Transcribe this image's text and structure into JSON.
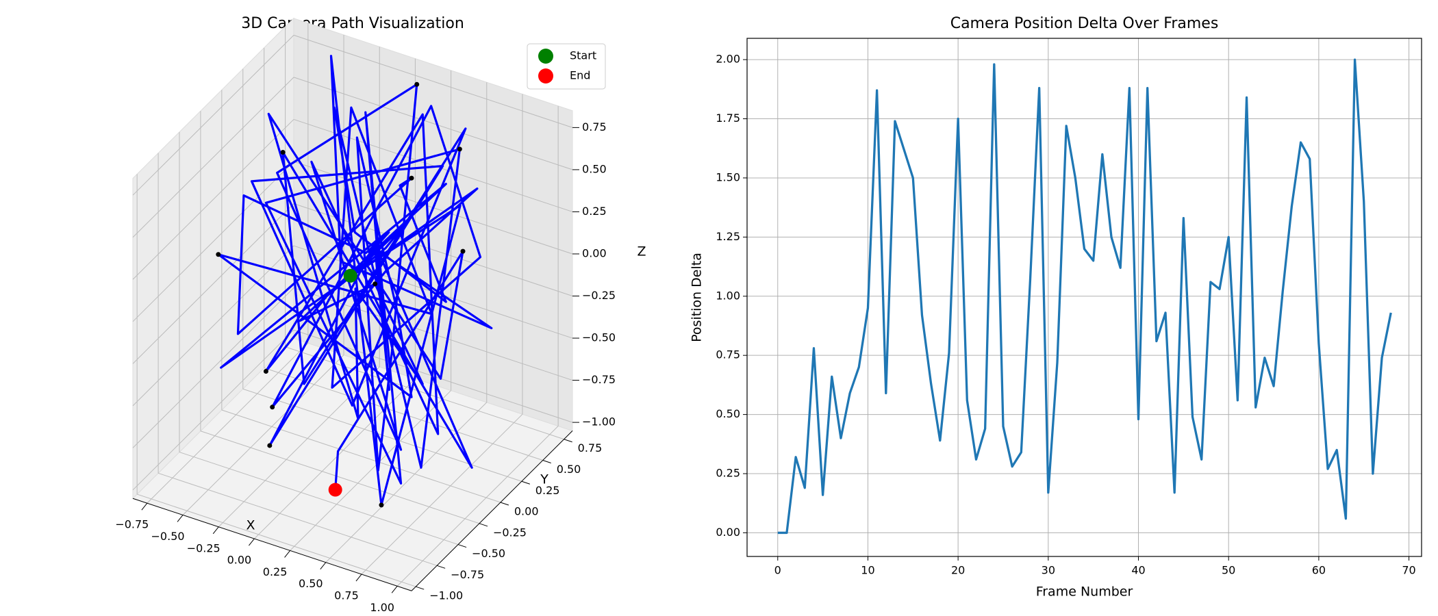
{
  "chart_data": [
    {
      "type": "line3d",
      "title": "3D Camera Path Visualization",
      "xlabel": "X",
      "ylabel": "Y",
      "zlabel": "Z",
      "xlim": [
        -0.85,
        1.1
      ],
      "ylim": [
        -1.05,
        0.85
      ],
      "zlim": [
        -1.05,
        0.85
      ],
      "xticks": [
        {
          "value": -0.75,
          "label": "−0.75"
        },
        {
          "value": -0.5,
          "label": "−0.50"
        },
        {
          "value": -0.25,
          "label": "−0.25"
        },
        {
          "value": 0,
          "label": "0.00"
        },
        0.25,
        {
          "value": 0.5,
          "label": "0.50"
        },
        0.75,
        {
          "value": 1,
          "label": "1.00"
        }
      ],
      "yticks": [
        {
          "value": -1,
          "label": "−1.00"
        },
        {
          "value": -0.75,
          "label": "−0.75"
        },
        {
          "value": -0.5,
          "label": "−0.50"
        },
        {
          "value": -0.25,
          "label": "−0.25"
        },
        {
          "value": 0,
          "label": "0.00"
        },
        0.25,
        {
          "value": 0.5,
          "label": "0.50"
        },
        0.75
      ],
      "zticks": [
        {
          "value": -1,
          "label": "−1.00"
        },
        {
          "value": -0.75,
          "label": "−0.75"
        },
        {
          "value": -0.5,
          "label": "−0.50"
        },
        {
          "value": -0.25,
          "label": "−0.25"
        },
        {
          "value": 0,
          "label": "0.00"
        },
        0.25,
        {
          "value": 0.5,
          "label": "0.50"
        },
        0.75
      ],
      "grid": true,
      "legend": "upper right",
      "series": [
        {
          "mode": "line",
          "color": "#0000ff",
          "x": [
            0.05,
            0.05,
            0.2,
            0.1,
            -0.4,
            -0.5,
            0.3,
            0.1,
            0.6,
            0.2,
            -0.3,
            0.9,
            0.4,
            -0.6,
            0.7,
            -0.2,
            0.5,
            0.1,
            -0.1,
            0.4,
            -0.7,
            0.3,
            0.5,
            0.2,
            -0.6,
            0.9,
            0.6,
            0.8,
            0.1,
            -0.5,
            0.8,
            0.7,
            -0.3,
            0.6,
            0.0,
            0.3,
            -0.6,
            0.2,
            0.9,
            -0.4,
            0.7,
            -0.7,
            0.1,
            0.4,
            0.6,
            -0.2,
            0.5,
            0.3,
            -0.4,
            0.5,
            -0.3,
            0.1,
            0.9,
            0.2,
            -0.2,
            0.3,
            0.7,
            -0.5,
            0.6,
            -0.6,
            0.4,
            0.2,
            0.5,
            0.4,
            -0.7,
            0.8,
            0.6,
            0.2,
            0.3
          ],
          "y": [
            0.0,
            0.0,
            0.2,
            0.1,
            -0.5,
            -0.4,
            0.3,
            0.5,
            0.2,
            -0.2,
            0.4,
            -0.6,
            0.7,
            0.1,
            -0.5,
            0.6,
            -0.3,
            0.2,
            -0.7,
            0.5,
            0.1,
            -0.4,
            0.6,
            -0.8,
            0.3,
            0.0,
            -0.6,
            0.4,
            -0.2,
            0.7,
            -0.9,
            0.2,
            0.6,
            -0.3,
            0.5,
            -0.7,
            0.1,
            0.6,
            -0.4,
            0.3,
            -0.5,
            0.4,
            0.7,
            -0.1,
            -0.6,
            0.5,
            -0.2,
            0.3,
            -0.8,
            0.2,
            0.6,
            -0.3,
            0.1,
            0.7,
            -0.5,
            0.0,
            0.4,
            -0.6,
            0.2,
            0.5,
            -0.3,
            0.6,
            -0.7,
            -0.5,
            0.3,
            -0.2,
            0.4,
            -0.4,
            -0.6
          ],
          "z": [
            0.0,
            0.0,
            0.2,
            0.1,
            0.6,
            -0.3,
            0.5,
            0.3,
            -0.1,
            0.4,
            0.7,
            -0.6,
            0.5,
            0.2,
            -0.8,
            0.6,
            -0.4,
            0.1,
            -0.7,
            0.5,
            0.3,
            -0.5,
            0.7,
            -0.2,
            0.4,
            -0.9,
            0.6,
            -0.3,
            0.2,
            0.8,
            -0.7,
            0.5,
            -0.4,
            0.6,
            -0.1,
            0.3,
            -0.8,
            0.7,
            -0.5,
            0.4,
            -0.6,
            0.2,
            0.8,
            -0.3,
            -0.7,
            0.5,
            0.0,
            -0.8,
            0.4,
            -0.2,
            0.6,
            -0.5,
            0.3,
            0.7,
            -0.6,
            0.1,
            0.5,
            -0.4,
            0.6,
            -0.7,
            0.2,
            -0.9,
            0.4,
            -0.5,
            0.6,
            -0.3,
            0.1,
            -0.8,
            -0.9
          ]
        },
        {
          "mode": "points",
          "color": "#000000",
          "x": [
            0.3,
            0.4,
            -0.1,
            -0.6,
            0.8,
            -0.6,
            0.1,
            -0.4,
            -0.2,
            0.4,
            0.6
          ],
          "y": [
            0.3,
            0.7,
            -0.7,
            0.3,
            -0.9,
            0.1,
            0.7,
            -0.8,
            -0.5,
            -0.3,
            0.4
          ],
          "z": [
            0.5,
            0.5,
            -0.7,
            0.4,
            -0.7,
            -0.8,
            0.8,
            0.4,
            -0.6,
            0.2,
            0.1
          ]
        },
        {
          "mode": "points",
          "name": "Start",
          "color": "#008000",
          "x": [
            0.05
          ],
          "y": [
            0.0
          ],
          "z": [
            0.0
          ]
        },
        {
          "mode": "points",
          "name": "End",
          "color": "#ff0000",
          "x": [
            0.3
          ],
          "y": [
            -0.6
          ],
          "z": [
            -0.9
          ]
        }
      ]
    },
    {
      "type": "line",
      "title": "Camera Position Delta Over Frames",
      "xlabel": "Frame Number",
      "ylabel": "Position Delta",
      "x": [
        0,
        1,
        2,
        3,
        4,
        5,
        6,
        7,
        8,
        9,
        10,
        11,
        12,
        13,
        14,
        15,
        16,
        17,
        18,
        19,
        20,
        21,
        22,
        23,
        24,
        25,
        26,
        27,
        28,
        29,
        30,
        31,
        32,
        33,
        34,
        35,
        36,
        37,
        38,
        39,
        40,
        41,
        42,
        43,
        44,
        45,
        46,
        47,
        48,
        49,
        50,
        51,
        52,
        53,
        54,
        55,
        56,
        57,
        58,
        59,
        60,
        61,
        62,
        63,
        64,
        65,
        66,
        67,
        68
      ],
      "series": [
        {
          "color": "#1f77b4",
          "values": [
            0,
            0,
            0.32,
            0.19,
            0.78,
            0.16,
            0.66,
            0.4,
            0.59,
            0.7,
            0.95,
            1.87,
            0.59,
            1.74,
            1.62,
            1.5,
            0.92,
            0.63,
            0.39,
            0.76,
            1.75,
            0.56,
            0.31,
            0.44,
            1.98,
            0.45,
            0.28,
            0.34,
            1.07,
            1.88,
            0.17,
            0.72,
            1.72,
            1.5,
            1.2,
            1.15,
            1.6,
            1.25,
            1.12,
            1.88,
            0.48,
            1.88,
            0.81,
            0.93,
            0.17,
            1.33,
            0.49,
            0.31,
            1.06,
            1.03,
            1.25,
            0.56,
            1.84,
            0.53,
            0.74,
            0.62,
            1.02,
            1.38,
            1.65,
            1.58,
            0.8,
            0.27,
            0.35,
            0.06,
            2.0,
            1.4,
            0.25,
            0.74,
            0.93
          ]
        }
      ],
      "xlim": [
        -3.4,
        71.4
      ],
      "ylim": [
        -0.1,
        2.09
      ],
      "xticks": [
        0,
        10,
        20,
        30,
        40,
        50,
        60,
        70
      ],
      "yticks": [
        {
          "value": 0,
          "label": "0.00"
        },
        0.25,
        {
          "value": 0.5,
          "label": "0.50"
        },
        0.75,
        {
          "value": 1,
          "label": "1.00"
        },
        1.25,
        {
          "value": 1.5,
          "label": "1.50"
        },
        1.75,
        {
          "value": 2,
          "label": "2.00"
        }
      ],
      "grid": true
    }
  ]
}
